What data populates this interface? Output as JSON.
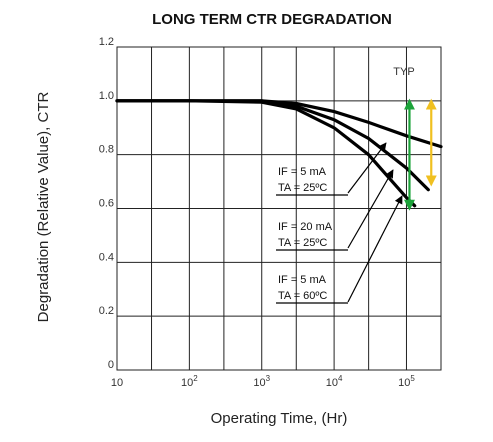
{
  "chart_data": {
    "type": "line",
    "title": "LONG TERM CTR DEGRADATION",
    "xlabel": "Operating Time, (Hr)",
    "ylabel": "Degradation (Relative Value), CTR",
    "x_scale": "log",
    "xlim": [
      10,
      300000
    ],
    "ylim": [
      0,
      1.2
    ],
    "grid": true,
    "x_ticks": [
      {
        "value": 10,
        "base": "10",
        "exp": ""
      },
      {
        "value": 100,
        "base": "10",
        "exp": "2"
      },
      {
        "value": 1000,
        "base": "10",
        "exp": "3"
      },
      {
        "value": 10000,
        "base": "10",
        "exp": "4"
      },
      {
        "value": 100000,
        "base": "10",
        "exp": "5"
      }
    ],
    "y_ticks": [
      "0",
      "0.2",
      "0.4",
      "0.6",
      "0.8",
      "1.0",
      "1.2"
    ],
    "corner_label": "TYP",
    "series": [
      {
        "annotation": {
          "if_label": "IF = 5 mA",
          "ta_label": "TA = 25ºC"
        },
        "x": [
          10,
          100,
          1000,
          3000,
          10000,
          30000,
          100000,
          300000
        ],
        "y": [
          1.0,
          1.0,
          1.0,
          0.99,
          0.96,
          0.92,
          0.87,
          0.83
        ]
      },
      {
        "annotation": {
          "if_label": "IF = 20 mA",
          "ta_label": "TA = 25ºC"
        },
        "x": [
          10,
          100,
          1000,
          3000,
          10000,
          30000,
          100000,
          200000
        ],
        "y": [
          1.0,
          1.0,
          1.0,
          0.98,
          0.93,
          0.86,
          0.75,
          0.67
        ]
      },
      {
        "annotation": {
          "if_label": "IF = 5 mA",
          "ta_label": "TA = 60ºC"
        },
        "x": [
          10,
          100,
          1000,
          3000,
          10000,
          30000,
          100000,
          130000
        ],
        "y": [
          1.0,
          1.0,
          0.995,
          0.97,
          0.9,
          0.8,
          0.64,
          0.61
        ]
      }
    ],
    "range_arrows": [
      {
        "color": "#1ca33a",
        "x": 110000,
        "y_from": 1.0,
        "y_to": 0.6
      },
      {
        "color": "#f0c020",
        "x": 220000,
        "y_from": 1.0,
        "y_to": 0.69
      }
    ]
  }
}
